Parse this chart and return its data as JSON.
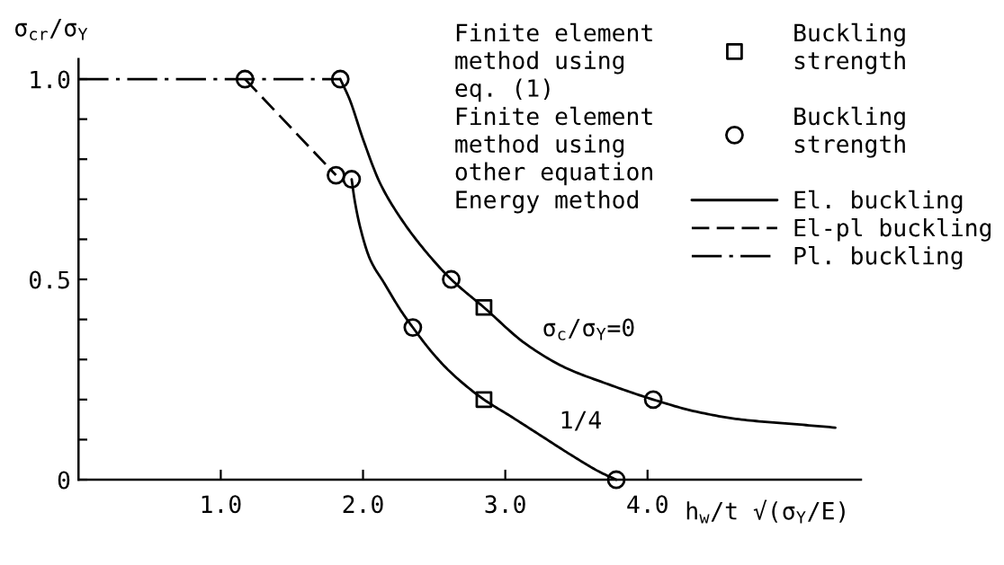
{
  "chart_data": {
    "type": "line",
    "xlabel": "h$_{w}$/t √(σ$_{Y}$/E)",
    "ylabel": "σ$_{cr}$/σ$_{Y}$",
    "xlim": [
      0,
      5.5
    ],
    "ylim": [
      0,
      1.05
    ],
    "xticks": [
      {
        "value": 1,
        "label": "1.0"
      },
      {
        "value": 2,
        "label": "2.0"
      },
      {
        "value": 3,
        "label": "3.0"
      },
      {
        "value": 4,
        "label": "4.0"
      }
    ],
    "yticks": [
      0,
      {
        "value": 0.1,
        "label": null
      },
      {
        "value": 0.2,
        "label": null
      },
      {
        "value": 0.3,
        "label": null
      },
      {
        "value": 0.4,
        "label": null
      },
      0.5,
      {
        "value": 0.6,
        "label": null
      },
      {
        "value": 0.7,
        "label": null
      },
      {
        "value": 0.8,
        "label": null
      },
      {
        "value": 0.9,
        "label": null
      },
      {
        "value": 1,
        "label": "1.0"
      }
    ],
    "grid": false,
    "legend": "top right",
    "series": [
      {
        "name": "El. buckling",
        "line_style": "solid",
        "color": "#000000",
        "x": [
          1.84,
          1.905,
          2.0,
          2.12,
          2.27,
          2.44,
          2.62,
          2.85,
          3.14,
          3.42,
          3.71,
          4.04,
          4.34,
          4.66,
          4.99,
          5.32,
          null,
          1.92,
          1.94,
          1.98,
          2.05,
          2.15,
          2.27,
          2.35,
          2.48,
          2.61,
          2.85,
          3.03,
          3.25,
          3.47,
          3.66,
          3.78
        ],
        "values": [
          1.0,
          0.95,
          0.85,
          0.74,
          0.65,
          0.57,
          0.5,
          0.43,
          0.34,
          0.28,
          0.24,
          0.2,
          0.17,
          0.15,
          0.14,
          0.13,
          null,
          0.75,
          0.7,
          0.63,
          0.55,
          0.49,
          0.42,
          0.38,
          0.32,
          0.27,
          0.2,
          0.16,
          0.11,
          0.06,
          0.02,
          0.0
        ]
      },
      {
        "name": "El-pl buckling",
        "line_style": "dashed",
        "color": "#000000",
        "x": [
          1.17,
          1.81
        ],
        "values": [
          1.0,
          0.76
        ]
      },
      {
        "name": "Pl. buckling",
        "line_style": "dashdot",
        "color": "#000000",
        "x": [
          0,
          1.84
        ],
        "values": [
          1.0,
          1.0
        ]
      },
      {
        "name": "Buckling\nstrength",
        "type": "scatter",
        "marker": "square",
        "color": "#000000",
        "x": [
          2.85,
          2.85
        ],
        "values": [
          0.43,
          0.2
        ]
      },
      {
        "name": "Buckling\nstrength",
        "type": "scatter",
        "marker": "circle",
        "color": "#000000",
        "x": [
          1.17,
          1.84,
          1.81,
          1.92,
          2.35,
          2.62,
          4.04,
          3.78
        ],
        "values": [
          1.0,
          1.0,
          0.76,
          0.75,
          0.38,
          0.5,
          0.2,
          0.0
        ]
      }
    ],
    "annotations": [
      "Finite element\nmethod using\neq. (1)",
      "Finite element\nmethod using\nother equation",
      "Energy method",
      {
        "text": "σ$_{c}$/σ$_{Y}$=0",
        "x": 3.18,
        "y": 0.33
      },
      {
        "text": "1/4",
        "x": 3.3,
        "y": 0.1
      }
    ]
  }
}
